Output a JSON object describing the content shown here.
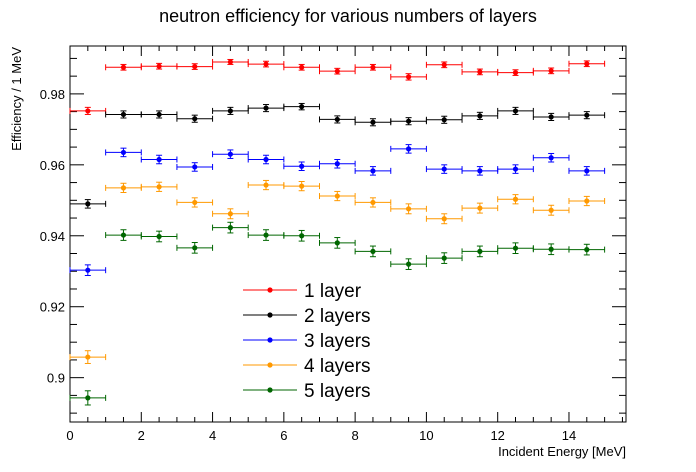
{
  "chart_data": {
    "type": "scatter",
    "title": "neutron efficiency for various numbers of layers",
    "xlabel": "Incident Energy [MeV]",
    "ylabel": "Efficiency / 1 MeV",
    "xlim": [
      0,
      15.6
    ],
    "ylim": [
      0.8875,
      0.9935
    ],
    "x_ticks": [
      0,
      2,
      4,
      6,
      8,
      10,
      12,
      14
    ],
    "y_ticks": [
      0.9,
      0.92,
      0.94,
      0.96,
      0.98
    ],
    "x_tick_labels": [
      "0",
      "2",
      "4",
      "6",
      "8",
      "10",
      "12",
      "14"
    ],
    "y_tick_labels": [
      "0.9",
      "0.92",
      "0.94",
      "0.96",
      "0.98"
    ],
    "grid": false,
    "legend_position": "bottom-center",
    "bin_half_width": 0.5,
    "series": [
      {
        "name": "1 layer",
        "color": "#ff0000",
        "x": [
          0.5,
          1.5,
          2.5,
          3.5,
          4.5,
          5.5,
          6.5,
          7.5,
          8.5,
          9.5,
          10.5,
          11.5,
          12.5,
          13.5,
          14.5
        ],
        "y": [
          0.9752,
          0.9875,
          0.9878,
          0.9877,
          0.989,
          0.9884,
          0.9875,
          0.9864,
          0.9875,
          0.9848,
          0.9882,
          0.9862,
          0.986,
          0.9865,
          0.9885
        ],
        "yerr": [
          0.001,
          0.0008,
          0.0008,
          0.0008,
          0.0007,
          0.0008,
          0.0008,
          0.0008,
          0.0008,
          0.0009,
          0.0008,
          0.0008,
          0.0008,
          0.0008,
          0.0008
        ]
      },
      {
        "name": "2 layers",
        "color": "#000000",
        "x": [
          0.5,
          1.5,
          2.5,
          3.5,
          4.5,
          5.5,
          6.5,
          7.5,
          8.5,
          9.5,
          10.5,
          11.5,
          12.5,
          13.5,
          14.5
        ],
        "y": [
          0.949,
          0.9742,
          0.9742,
          0.973,
          0.9752,
          0.976,
          0.9764,
          0.9728,
          0.972,
          0.9723,
          0.9727,
          0.9738,
          0.9752,
          0.9735,
          0.974
        ],
        "yerr": [
          0.0012,
          0.001,
          0.001,
          0.001,
          0.001,
          0.001,
          0.0009,
          0.001,
          0.001,
          0.001,
          0.001,
          0.001,
          0.001,
          0.001,
          0.001
        ]
      },
      {
        "name": "3 layers",
        "color": "#0000ff",
        "x": [
          0.5,
          1.5,
          2.5,
          3.5,
          4.5,
          5.5,
          6.5,
          7.5,
          8.5,
          9.5,
          10.5,
          11.5,
          12.5,
          13.5,
          14.5
        ],
        "y": [
          0.9303,
          0.9635,
          0.9615,
          0.9594,
          0.963,
          0.9615,
          0.9596,
          0.9603,
          0.9583,
          0.9645,
          0.9588,
          0.9583,
          0.9588,
          0.962,
          0.9583
        ],
        "yerr": [
          0.0015,
          0.0012,
          0.0012,
          0.0012,
          0.0012,
          0.0012,
          0.0012,
          0.0012,
          0.0012,
          0.0012,
          0.0012,
          0.0012,
          0.0012,
          0.0012,
          0.0012
        ]
      },
      {
        "name": "4 layers",
        "color": "#ff9900",
        "x": [
          0.5,
          1.5,
          2.5,
          3.5,
          4.5,
          5.5,
          6.5,
          7.5,
          8.5,
          9.5,
          10.5,
          11.5,
          12.5,
          13.5,
          14.5
        ],
        "y": [
          0.9058,
          0.9535,
          0.9538,
          0.9494,
          0.9462,
          0.9543,
          0.954,
          0.9512,
          0.9494,
          0.9476,
          0.9448,
          0.9478,
          0.9503,
          0.9472,
          0.9498
        ],
        "yerr": [
          0.0018,
          0.0013,
          0.0013,
          0.0013,
          0.0014,
          0.0013,
          0.0013,
          0.0013,
          0.0013,
          0.0014,
          0.0014,
          0.0014,
          0.0013,
          0.0014,
          0.0013
        ]
      },
      {
        "name": "5 layers",
        "color": "#006600",
        "x": [
          0.5,
          1.5,
          2.5,
          3.5,
          4.5,
          5.5,
          6.5,
          7.5,
          8.5,
          9.5,
          10.5,
          11.5,
          12.5,
          13.5,
          14.5
        ],
        "y": [
          0.8943,
          0.9402,
          0.9398,
          0.9366,
          0.9423,
          0.9402,
          0.94,
          0.938,
          0.9356,
          0.932,
          0.9337,
          0.9356,
          0.9365,
          0.9362,
          0.9361
        ],
        "yerr": [
          0.002,
          0.0015,
          0.0015,
          0.0015,
          0.0015,
          0.0015,
          0.0015,
          0.0015,
          0.0015,
          0.0015,
          0.0015,
          0.0015,
          0.0015,
          0.0015,
          0.0015
        ]
      }
    ]
  }
}
